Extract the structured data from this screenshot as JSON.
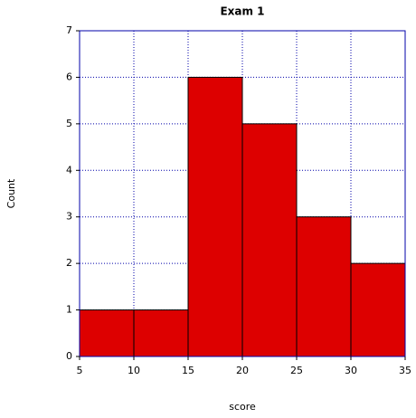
{
  "chart_data": {
    "type": "histogram",
    "title": "Exam 1",
    "x_label": "score",
    "y_label": "Count",
    "bins": [
      5,
      10,
      15,
      20,
      25,
      30,
      35
    ],
    "values": [
      1,
      1,
      6,
      5,
      3,
      2
    ],
    "color": "#dd0000",
    "xlim": [
      5,
      35
    ],
    "xticks": [
      5,
      10,
      15,
      20,
      25,
      30,
      35
    ],
    "ylim": [
      0,
      7
    ],
    "yticks": [
      0,
      1,
      2,
      3,
      4,
      5,
      6,
      7
    ],
    "grid": true
  }
}
